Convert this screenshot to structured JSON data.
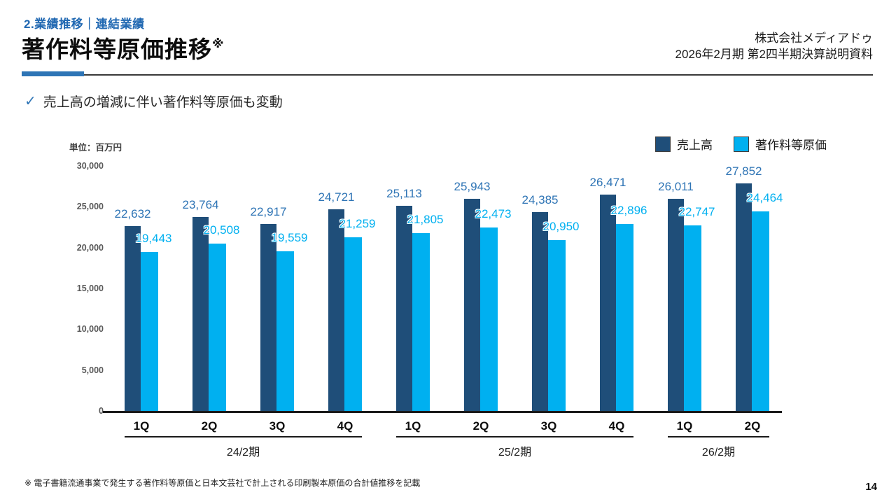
{
  "slide": {
    "section_label": "2.業績推移｜連結業績",
    "title": "著作料等原価推移",
    "title_note": "※",
    "company_name": "株式会社メディアドゥ",
    "document_title": "2026年2月期 第2四半期決算説明資料",
    "check_mark": "✓",
    "key_message": "売上高の増減に伴い著作料等原価も変動",
    "footnote": "※ 電子書籍流通事業で発生する著作料等原価と日本文芸社で計上される印刷製本原価の合計値推移を記載",
    "page_number": "14"
  },
  "colors": {
    "accent_blue": "#2E75B6",
    "section_blue": "#2068B2",
    "sales_bar": "#1F4E79",
    "cost_bar": "#00B0F0",
    "sales_label": "#2E74B5",
    "cost_label": "#00B0F0"
  },
  "chart_data": {
    "type": "bar",
    "unit_label": "単位：百万円",
    "y_axis": {
      "ticks": [
        0,
        5000,
        10000,
        15000,
        20000,
        25000,
        30000
      ],
      "max": 30000,
      "gridlines": false
    },
    "legend": {
      "position": "top-right",
      "items": [
        {
          "label": "売上高",
          "color": "#1F4E79"
        },
        {
          "label": "著作料等原価",
          "color": "#00B0F0"
        }
      ]
    },
    "groups": [
      {
        "label": "24/2期",
        "quarters": [
          "1Q",
          "2Q",
          "3Q",
          "4Q"
        ]
      },
      {
        "label": "25/2期",
        "quarters": [
          "1Q",
          "2Q",
          "3Q",
          "4Q"
        ]
      },
      {
        "label": "26/2期",
        "quarters": [
          "1Q",
          "2Q"
        ]
      }
    ],
    "series": [
      {
        "name": "売上高",
        "color": "#1F4E79",
        "label_color": "#2E74B5",
        "values": [
          22632,
          23764,
          22917,
          24721,
          25113,
          25943,
          24385,
          26471,
          26011,
          27852
        ]
      },
      {
        "name": "著作料等原価",
        "color": "#00B0F0",
        "label_color": "#00B0F0",
        "values": [
          19443,
          20508,
          19559,
          21259,
          21805,
          22473,
          20950,
          22896,
          22747,
          24464
        ]
      }
    ]
  }
}
